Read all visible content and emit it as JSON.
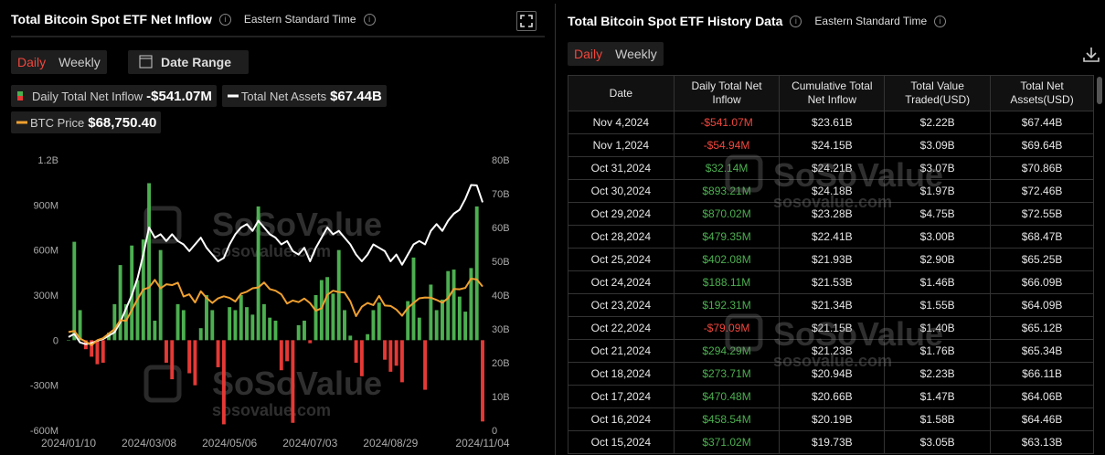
{
  "left_panel": {
    "title": "Total Bitcoin Spot ETF Net Inflow",
    "timezone": "Eastern Standard Time",
    "tabs": [
      "Daily",
      "Weekly"
    ],
    "date_range": "Date Range"
  },
  "watermark": {
    "brand": "SoSoValue",
    "site": "sosovalue.com"
  },
  "chart_data": {
    "type": "bar",
    "categories": [
      "2024/01/10",
      null,
      null,
      null,
      null,
      null,
      null,
      null,
      null,
      null,
      null,
      null,
      null,
      null,
      "2024/03/08",
      null,
      null,
      null,
      null,
      null,
      null,
      null,
      null,
      null,
      null,
      null,
      null,
      null,
      "2024/05/06",
      null,
      null,
      null,
      null,
      null,
      null,
      null,
      null,
      null,
      null,
      null,
      null,
      null,
      "2024/07/03",
      null,
      null,
      null,
      null,
      null,
      null,
      null,
      null,
      null,
      null,
      null,
      null,
      null,
      "2024/08/29",
      null,
      null,
      null,
      null,
      null,
      null,
      null,
      null,
      null,
      null,
      null,
      null,
      null,
      null,
      null,
      "2024/11/04"
    ],
    "series": [
      {
        "name": "Daily Total Net Inflow",
        "type": "bar",
        "latest": "-$541.07M",
        "color": "#4caf50",
        "negative_color": "#e53935",
        "values": [
          0,
          655,
          200,
          -60,
          -110,
          -160,
          -150,
          50,
          240,
          500,
          240,
          630,
          400,
          670,
          1045,
          130,
          600,
          -150,
          -260,
          240,
          200,
          -220,
          -300,
          80,
          300,
          200,
          -180,
          -560,
          220,
          200,
          300,
          220,
          170,
          890,
          240,
          150,
          130,
          -200,
          -140,
          -550,
          100,
          130,
          -20,
          300,
          400,
          420,
          310,
          600,
          200,
          30,
          -150,
          -240,
          40,
          200,
          250,
          -130,
          -210,
          -170,
          -280,
          260,
          550,
          150,
          -330,
          370,
          200,
          270,
          460,
          470,
          290,
          190,
          480,
          890,
          -541.07
        ]
      },
      {
        "name": "Total Net Assets",
        "type": "line",
        "axis": "y2",
        "latest": "$67.44B",
        "color": "#ffffff",
        "values": [
          27.6,
          28.5,
          26,
          25.5,
          25.8,
          26.5,
          27,
          28,
          29,
          32,
          36,
          40,
          45,
          52,
          60,
          57,
          58,
          56,
          58,
          56,
          55,
          53,
          55,
          57,
          54,
          52,
          50,
          51,
          55,
          58,
          60,
          61,
          59,
          62,
          60,
          58,
          57,
          55,
          56,
          53,
          52,
          54,
          50,
          54,
          57,
          60,
          58,
          59,
          57,
          55,
          52,
          50,
          52,
          55,
          54,
          53,
          50,
          52,
          49,
          52,
          55,
          56,
          55,
          59,
          61,
          59,
          62,
          64.09,
          65.25,
          68.47,
          72.55,
          72.46,
          67.44
        ]
      },
      {
        "name": "BTC Price",
        "type": "line",
        "axis": "y3",
        "latest": "$68,750.40",
        "color": "#f0a030",
        "values": [
          46100,
          46600,
          42800,
          41300,
          39500,
          42000,
          43000,
          45300,
          47500,
          52000,
          51700,
          57000,
          62500,
          67300,
          68300,
          72100,
          67900,
          69900,
          69500,
          70700,
          63800,
          64900,
          60800,
          66400,
          63100,
          60600,
          62900,
          63900,
          63100,
          61300,
          65200,
          66200,
          67900,
          68300,
          70800,
          67500,
          66700,
          64900,
          60300,
          61800,
          61000,
          62800,
          60500,
          56700,
          57900,
          64700,
          66700,
          66000,
          65800,
          61400,
          54000,
          58700,
          60600,
          59500,
          64100,
          59300,
          59100,
          57300,
          54200,
          58100,
          60600,
          62900,
          63300,
          63200,
          62100,
          60700,
          63000,
          67600,
          67400,
          68100,
          72700,
          72300,
          68750.4
        ]
      }
    ],
    "ylim": [
      -600,
      1200
    ],
    "yticks": [
      {
        "value": 1200,
        "label": "1.2B"
      },
      {
        "value": 900,
        "label": "900M"
      },
      {
        "value": 600,
        "label": "600M"
      },
      {
        "value": 300,
        "label": "300M"
      },
      0,
      {
        "value": -300,
        "label": "-300M"
      },
      {
        "value": -600,
        "label": "-600M"
      }
    ],
    "y2lim": [
      0,
      80
    ],
    "y2ticks": [
      {
        "value": 80,
        "label": "80B"
      },
      {
        "value": 70,
        "label": "70B"
      },
      {
        "value": 60,
        "label": "60B"
      },
      {
        "value": 50,
        "label": "50B"
      },
      {
        "value": 40,
        "label": "40B"
      },
      {
        "value": 30,
        "label": "30B"
      },
      {
        "value": 20,
        "label": "20B"
      },
      {
        "value": 10,
        "label": "10B"
      },
      0
    ],
    "y3lim": [
      -3000,
      132000
    ],
    "grid": false
  },
  "right_panel": {
    "title": "Total Bitcoin Spot ETF History Data",
    "timezone": "Eastern Standard Time",
    "tabs": [
      "Daily",
      "Weekly"
    ],
    "table": {
      "headers": [
        "Date",
        "Daily Total Net Inflow",
        "Cumulative Total Net Inflow",
        "Total Value Traded(USD)",
        "Total Net Assets(USD)"
      ],
      "rows": [
        [
          "Nov 4,2024",
          "-$541.07M",
          "$23.61B",
          "$2.22B",
          "$67.44B"
        ],
        [
          "Nov 1,2024",
          "-$54.94M",
          "$24.15B",
          "$3.09B",
          "$69.64B"
        ],
        [
          "Oct 31,2024",
          "$32.14M",
          "$24.21B",
          "$3.07B",
          "$70.86B"
        ],
        [
          "Oct 30,2024",
          "$893.21M",
          "$24.18B",
          "$1.97B",
          "$72.46B"
        ],
        [
          "Oct 29,2024",
          "$870.02M",
          "$23.28B",
          "$4.75B",
          "$72.55B"
        ],
        [
          "Oct 28,2024",
          "$479.35M",
          "$22.41B",
          "$3.00B",
          "$68.47B"
        ],
        [
          "Oct 25,2024",
          "$402.08M",
          "$21.93B",
          "$2.90B",
          "$65.25B"
        ],
        [
          "Oct 24,2024",
          "$188.11M",
          "$21.53B",
          "$1.46B",
          "$66.09B"
        ],
        [
          "Oct 23,2024",
          "$192.31M",
          "$21.34B",
          "$1.55B",
          "$64.09B"
        ],
        [
          "Oct 22,2024",
          "-$79.09M",
          "$21.15B",
          "$1.40B",
          "$65.12B"
        ],
        [
          "Oct 21,2024",
          "$294.29M",
          "$21.23B",
          "$1.76B",
          "$65.34B"
        ],
        [
          "Oct 18,2024",
          "$273.71M",
          "$20.94B",
          "$2.23B",
          "$66.11B"
        ],
        [
          "Oct 17,2024",
          "$470.48M",
          "$20.66B",
          "$1.47B",
          "$64.06B"
        ],
        [
          "Oct 16,2024",
          "$458.54M",
          "$20.19B",
          "$1.58B",
          "$64.46B"
        ],
        [
          "Oct 15,2024",
          "$371.02M",
          "$19.73B",
          "$3.05B",
          "$63.13B"
        ]
      ]
    }
  }
}
